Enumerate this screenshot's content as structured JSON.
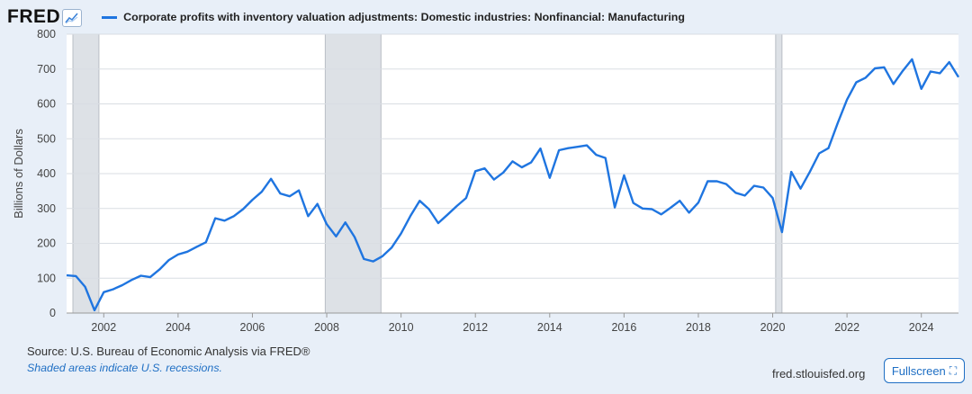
{
  "header": {
    "logo": "FRED",
    "logo_icon": "trend-line-icon"
  },
  "chart_data": {
    "type": "line",
    "title": "",
    "ylabel": "Billions of Dollars",
    "xlabel": "",
    "ylim": [
      0,
      800
    ],
    "xlim": [
      2001.0,
      2025.0
    ],
    "yticks": [
      0,
      100,
      200,
      300,
      400,
      500,
      600,
      700,
      800
    ],
    "xticks": [
      2002,
      2004,
      2006,
      2008,
      2010,
      2012,
      2014,
      2016,
      2018,
      2020,
      2022,
      2024
    ],
    "grid": true,
    "legend_position": "top-left",
    "recessions": [
      [
        2001.17,
        2001.87
      ],
      [
        2007.96,
        2009.46
      ],
      [
        2020.08,
        2020.25
      ]
    ],
    "series": [
      {
        "name": "Corporate profits with inventory valuation adjustments: Domestic industries: Nonfinancial: Manufacturing",
        "color": "#1f75e0",
        "points": [
          [
            2001.0,
            108
          ],
          [
            2001.25,
            106
          ],
          [
            2001.5,
            75
          ],
          [
            2001.75,
            8
          ],
          [
            2002.0,
            60
          ],
          [
            2002.25,
            68
          ],
          [
            2002.5,
            80
          ],
          [
            2002.75,
            95
          ],
          [
            2003.0,
            107
          ],
          [
            2003.25,
            103
          ],
          [
            2003.5,
            125
          ],
          [
            2003.75,
            152
          ],
          [
            2004.0,
            168
          ],
          [
            2004.25,
            176
          ],
          [
            2004.5,
            190
          ],
          [
            2004.75,
            203
          ],
          [
            2005.0,
            272
          ],
          [
            2005.25,
            265
          ],
          [
            2005.5,
            278
          ],
          [
            2005.75,
            298
          ],
          [
            2006.0,
            325
          ],
          [
            2006.25,
            348
          ],
          [
            2006.5,
            385
          ],
          [
            2006.75,
            343
          ],
          [
            2007.0,
            335
          ],
          [
            2007.25,
            352
          ],
          [
            2007.5,
            278
          ],
          [
            2007.75,
            313
          ],
          [
            2008.0,
            255
          ],
          [
            2008.25,
            220
          ],
          [
            2008.5,
            260
          ],
          [
            2008.75,
            218
          ],
          [
            2009.0,
            155
          ],
          [
            2009.25,
            148
          ],
          [
            2009.5,
            163
          ],
          [
            2009.75,
            188
          ],
          [
            2010.0,
            228
          ],
          [
            2010.25,
            278
          ],
          [
            2010.5,
            322
          ],
          [
            2010.75,
            298
          ],
          [
            2011.0,
            258
          ],
          [
            2011.25,
            282
          ],
          [
            2011.5,
            307
          ],
          [
            2011.75,
            330
          ],
          [
            2012.0,
            407
          ],
          [
            2012.25,
            415
          ],
          [
            2012.5,
            383
          ],
          [
            2012.75,
            403
          ],
          [
            2013.0,
            435
          ],
          [
            2013.25,
            418
          ],
          [
            2013.5,
            432
          ],
          [
            2013.75,
            472
          ],
          [
            2014.0,
            388
          ],
          [
            2014.25,
            467
          ],
          [
            2014.5,
            473
          ],
          [
            2014.75,
            477
          ],
          [
            2015.0,
            481
          ],
          [
            2015.25,
            454
          ],
          [
            2015.5,
            445
          ],
          [
            2015.75,
            303
          ],
          [
            2016.0,
            395
          ],
          [
            2016.25,
            316
          ],
          [
            2016.5,
            300
          ],
          [
            2016.75,
            298
          ],
          [
            2017.0,
            283
          ],
          [
            2017.25,
            302
          ],
          [
            2017.5,
            322
          ],
          [
            2017.75,
            288
          ],
          [
            2018.0,
            317
          ],
          [
            2018.25,
            378
          ],
          [
            2018.5,
            378
          ],
          [
            2018.75,
            370
          ],
          [
            2019.0,
            345
          ],
          [
            2019.25,
            337
          ],
          [
            2019.5,
            365
          ],
          [
            2019.75,
            360
          ],
          [
            2020.0,
            330
          ],
          [
            2020.25,
            232
          ],
          [
            2020.5,
            405
          ],
          [
            2020.75,
            357
          ],
          [
            2021.0,
            405
          ],
          [
            2021.25,
            458
          ],
          [
            2021.5,
            473
          ],
          [
            2021.75,
            545
          ],
          [
            2022.0,
            612
          ],
          [
            2022.25,
            662
          ],
          [
            2022.5,
            675
          ],
          [
            2022.75,
            702
          ],
          [
            2023.0,
            705
          ],
          [
            2023.25,
            657
          ],
          [
            2023.5,
            695
          ],
          [
            2023.75,
            728
          ],
          [
            2024.0,
            643
          ],
          [
            2024.25,
            693
          ],
          [
            2024.5,
            688
          ],
          [
            2024.75,
            720
          ],
          [
            2025.0,
            677
          ]
        ]
      }
    ]
  },
  "footer": {
    "source": "Source: U.S. Bureau of Economic Analysis via FRED®",
    "note": "Shaded areas indicate U.S. recessions.",
    "site": "fred.stlouisfed.org",
    "fullscreen_label": "Fullscreen",
    "fullscreen_icon": "expand-corners-icon"
  }
}
